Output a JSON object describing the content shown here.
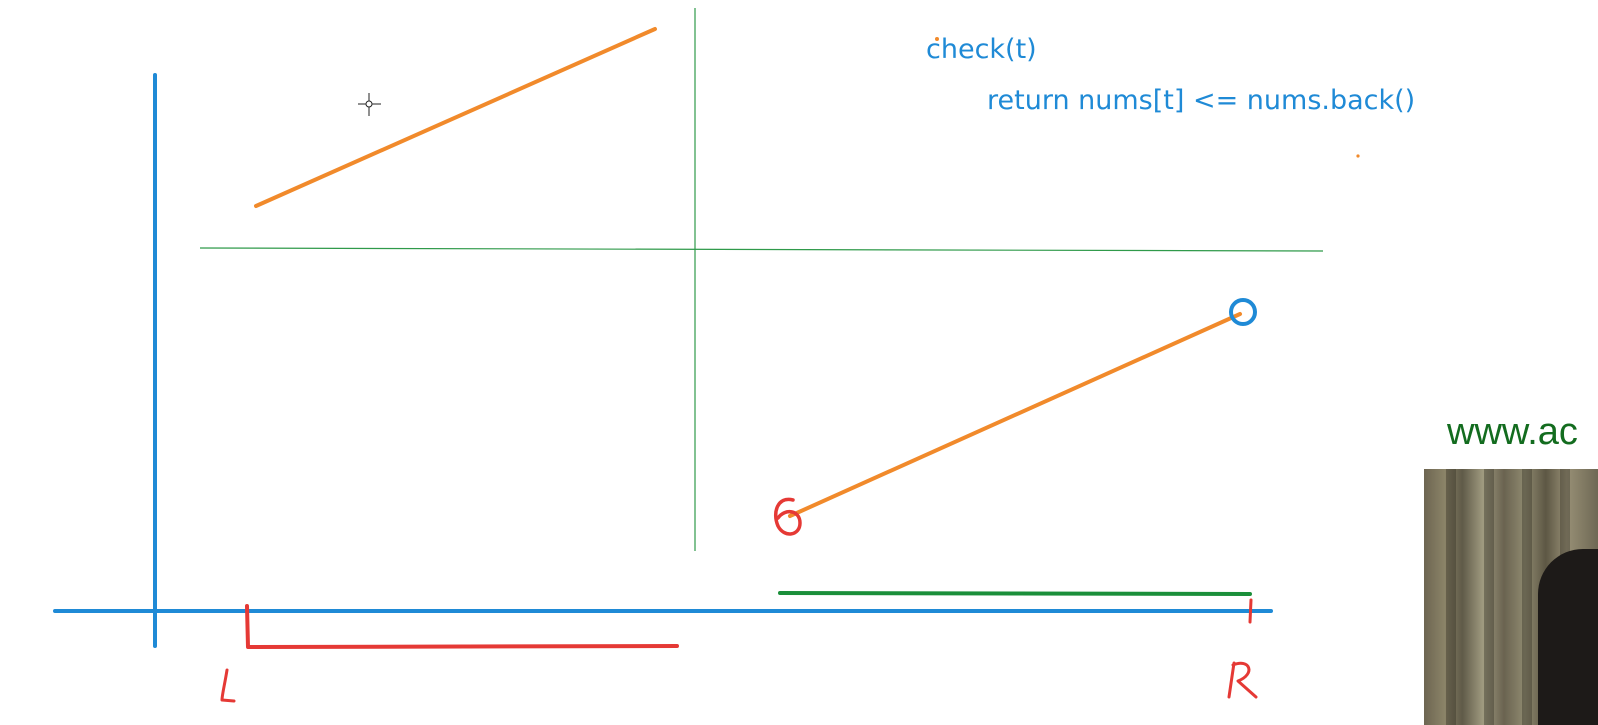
{
  "code": {
    "line1": "check(t)",
    "line2": "return nums[t] <= nums.back()"
  },
  "labels": {
    "left": "L",
    "right": "R",
    "site": "www.ac"
  },
  "colors": {
    "axis": "#1f8ad6",
    "segment": "#f18a2b",
    "grid": "#2f9a4a",
    "interval_red": "#e53935",
    "interval_green": "#1b8f3a",
    "code_text": "#1f8ad6",
    "site_text": "#136c1f"
  },
  "icons": {
    "cursor": "crosshair-cursor-icon",
    "marker": "circle-marker-icon"
  }
}
